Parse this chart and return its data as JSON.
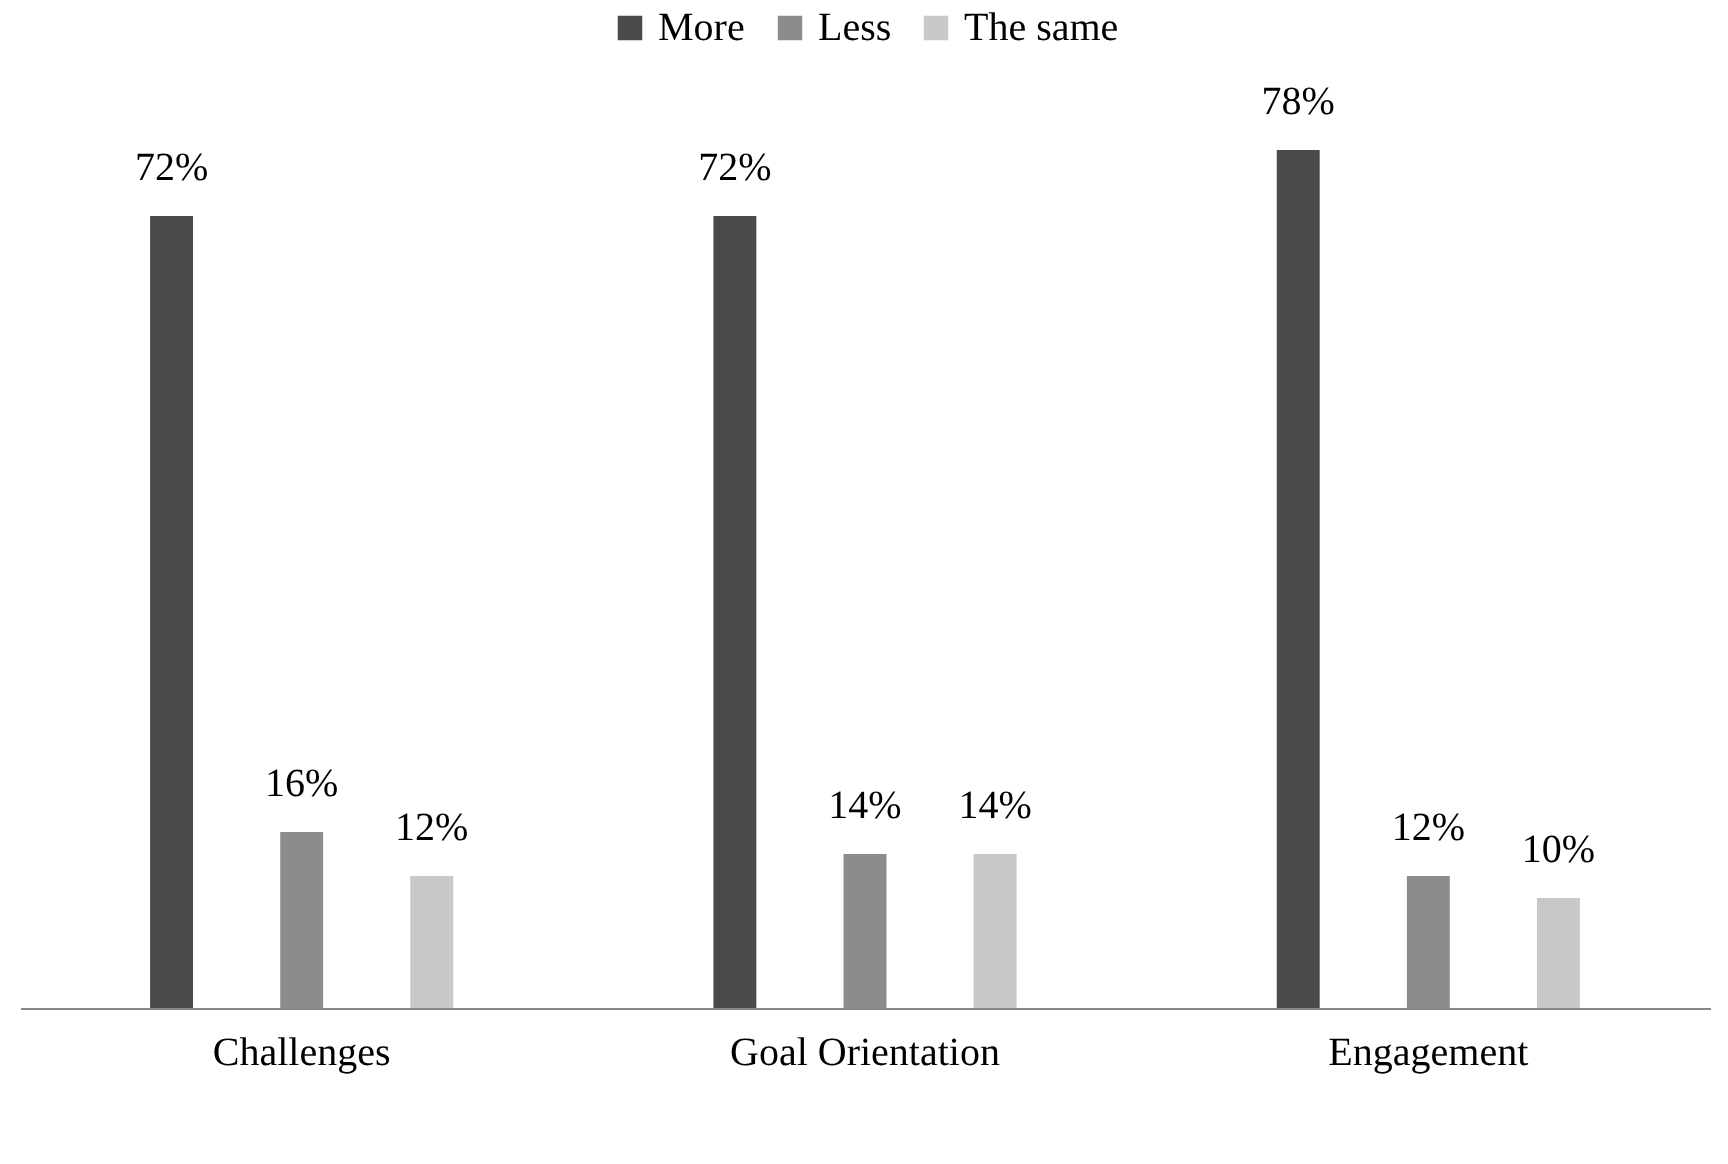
{
  "chart_data": {
    "type": "bar",
    "categories": [
      "Challenges",
      "Goal Orientation",
      "Engagement"
    ],
    "series": [
      {
        "name": "More",
        "color": "#4a4a4a",
        "values": [
          72,
          72,
          78
        ],
        "value_labels": [
          "72%",
          "72%",
          "78%"
        ]
      },
      {
        "name": "Less",
        "color": "#8c8c8c",
        "values": [
          16,
          14,
          12
        ],
        "value_labels": [
          "16%",
          "14%",
          "12%"
        ]
      },
      {
        "name": "The same",
        "color": "#c8c8c8",
        "values": [
          12,
          14,
          10
        ],
        "value_labels": [
          "12%",
          "14%",
          "10%"
        ]
      }
    ],
    "legend": "top",
    "grid": false
  }
}
